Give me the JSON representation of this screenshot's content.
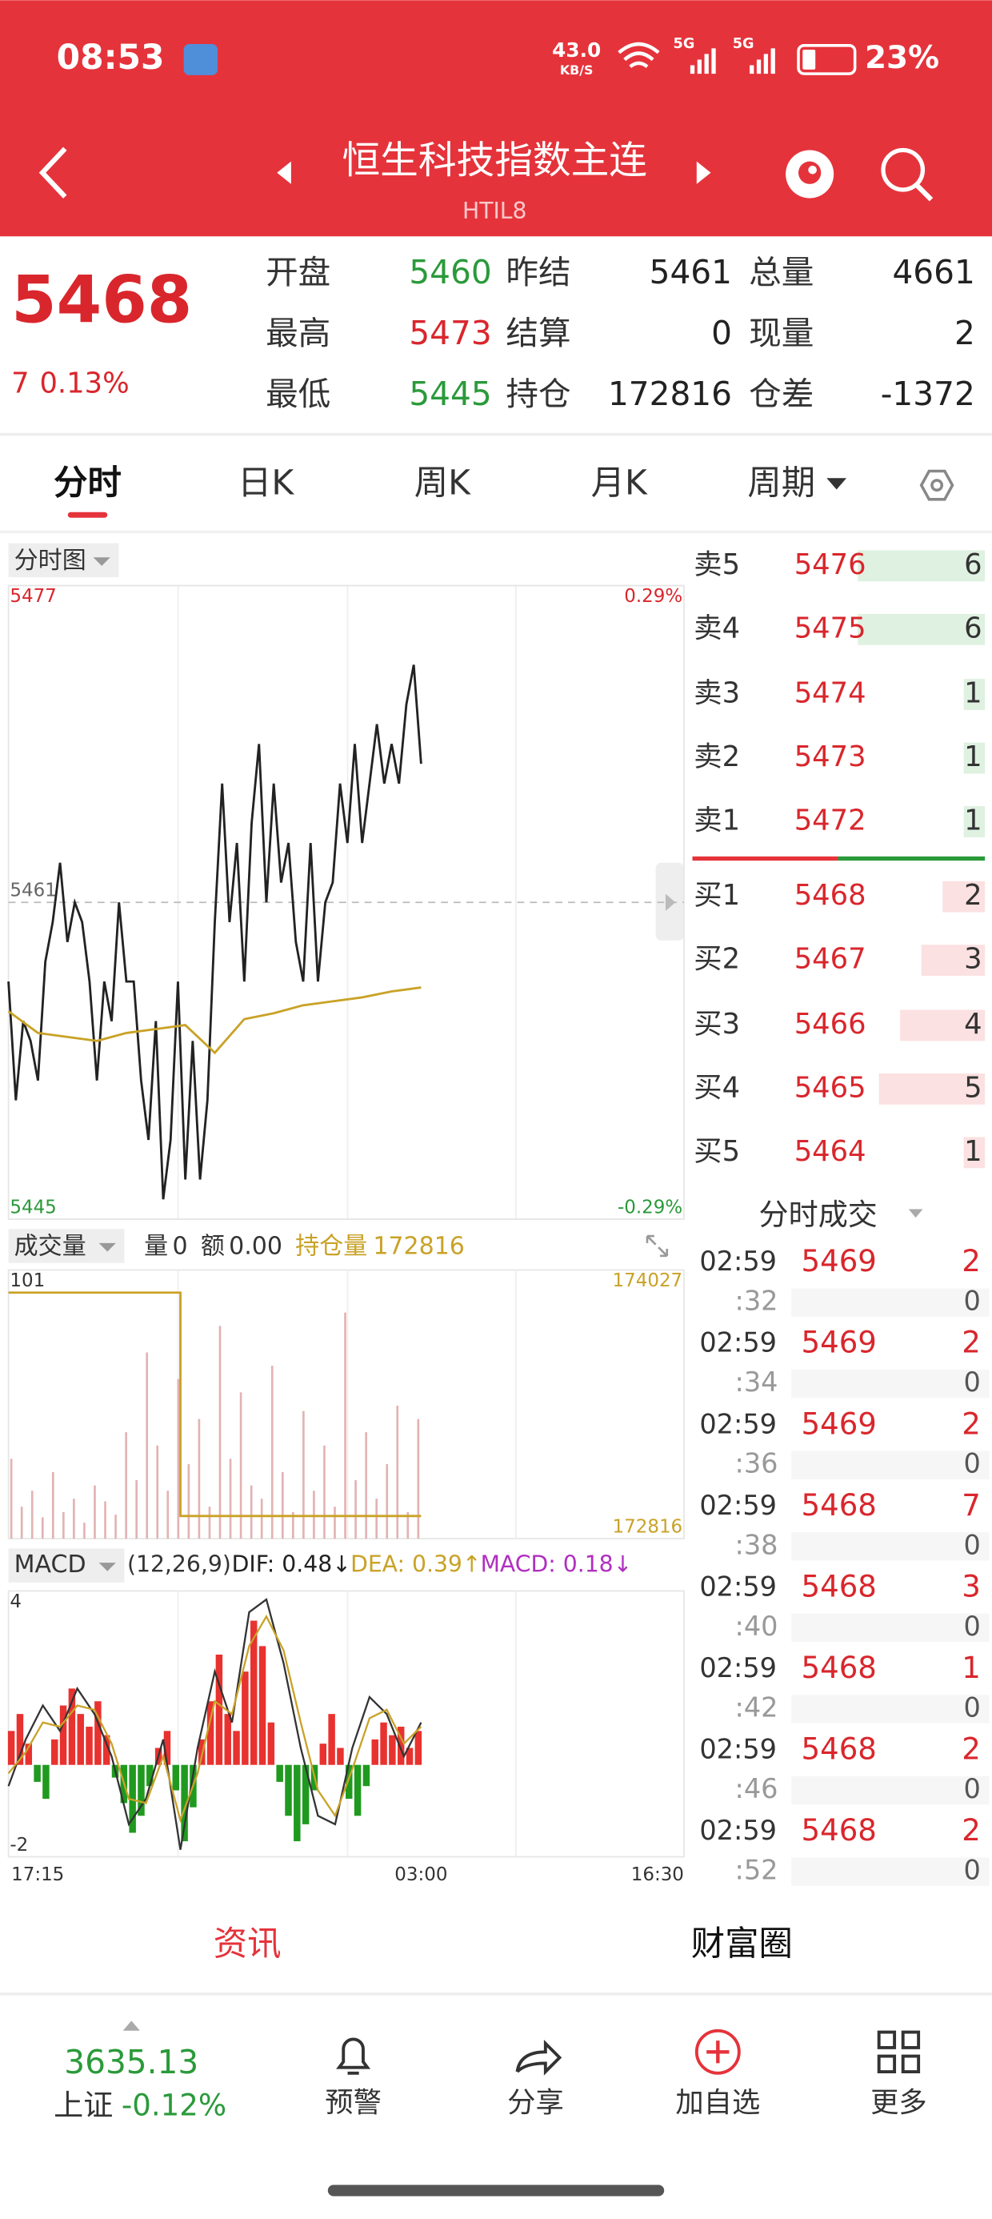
{
  "status_bar": {
    "time": "08:53",
    "speed": "43.0",
    "speed_unit": "KB/S",
    "network": [
      "5G",
      "5G"
    ],
    "battery": "23%"
  },
  "header": {
    "title": "恒生科技指数主连",
    "code": "HTIL8"
  },
  "quote": {
    "price": "5468",
    "change": "7",
    "change_pct": "0.13%",
    "fields": [
      {
        "label": "开盘",
        "value": "5460",
        "color": "#2a9a3a"
      },
      {
        "label": "昨结",
        "value": "5461",
        "color": "#222222"
      },
      {
        "label": "总量",
        "value": "4661",
        "color": "#222222"
      },
      {
        "label": "最高",
        "value": "5473",
        "color": "#d9262c"
      },
      {
        "label": "结算",
        "value": "0",
        "color": "#222222"
      },
      {
        "label": "现量",
        "value": "2",
        "color": "#222222"
      },
      {
        "label": "最低",
        "value": "5445",
        "color": "#2a9a3a"
      },
      {
        "label": "持仓",
        "value": "172816",
        "color": "#222222"
      },
      {
        "label": "仓差",
        "value": "-1372",
        "color": "#222222"
      }
    ]
  },
  "tabs": [
    "分时",
    "日K",
    "周K",
    "月K",
    "周期"
  ],
  "price_chart": {
    "type": "line",
    "label": "分时图",
    "ylim": [
      5445,
      5477
    ],
    "yticks": [
      5445,
      5461,
      5477
    ],
    "pct_lim": [
      -0.29,
      0.29
    ],
    "pct_ticks": [
      {
        "value": -0.29,
        "label": "-0.29%"
      },
      {
        "value": 0.29,
        "label": "0.29%"
      }
    ],
    "series": [
      {
        "name": "price",
        "color": "#222222",
        "values": [
          5457,
          5451,
          5455,
          5454,
          5452,
          5458,
          5460,
          5463,
          5459,
          5461,
          5460,
          5457,
          5452,
          5457,
          5455,
          5461,
          5457,
          5457,
          5452,
          5449,
          5455,
          5446,
          5449,
          5457,
          5447,
          5454,
          5447,
          5451,
          5460,
          5467,
          5460,
          5464,
          5457,
          5465,
          5469,
          5461,
          5467,
          5462,
          5464,
          5459,
          5457,
          5464,
          5457,
          5461,
          5462,
          5467,
          5464,
          5469,
          5464,
          5467,
          5470,
          5467,
          5469,
          5467,
          5471,
          5473,
          5468
        ]
      },
      {
        "name": "average",
        "color": "#c9a227",
        "values": [
          5455.5,
          5454.4,
          5454.2,
          5454.0,
          5454.4,
          5454.6,
          5454.8,
          5453.4,
          5455.1,
          5455.4,
          5455.8,
          5456.0,
          5456.2,
          5456.5,
          5456.7
        ]
      }
    ],
    "xlabels": [
      "17:15",
      "03:00",
      "16:30"
    ]
  },
  "volume_chart": {
    "type": "bar",
    "label": "成交量",
    "stats": [
      {
        "label": "量",
        "value": "0"
      },
      {
        "label": "额",
        "value": "0.00"
      }
    ],
    "oi_stat": {
      "label": "持仓量",
      "value": "172816"
    },
    "ylim": [
      0,
      101
    ],
    "yticks": [
      101
    ],
    "values": [
      30,
      12,
      18,
      8,
      25,
      10,
      15,
      6,
      20,
      14,
      9,
      40,
      22,
      70,
      35,
      18,
      60,
      28,
      45,
      12,
      80,
      30,
      55,
      20,
      15,
      65,
      25,
      10,
      48,
      18,
      35,
      12,
      85,
      22,
      40,
      15,
      28,
      50,
      10,
      45
    ],
    "color": "#e3b2b2",
    "y2lim": [
      172816,
      174027
    ],
    "y2ticks": [
      174027,
      172816
    ],
    "oi": {
      "name": "持仓量",
      "color": "#c9a227",
      "axis": "y2",
      "values": [
        174027,
        174027,
        174027,
        174027,
        174027,
        174027,
        174027,
        174027,
        174027,
        174027,
        172816,
        172816,
        172816,
        172816,
        172816,
        172816,
        172816,
        172816,
        172816,
        172816,
        172816,
        172816,
        172816,
        172816,
        172816
      ]
    }
  },
  "macd_chart": {
    "type": "bar",
    "label": "MACD",
    "params": "(12,26,9)",
    "legend": [
      {
        "text": "DIF: 0.48↓",
        "color": "#222222"
      },
      {
        "text": "DEA: 0.39↑",
        "color": "#c9a227"
      },
      {
        "text": "MACD: 0.18↓",
        "color": "#b030c0"
      }
    ],
    "ylim": [
      -2,
      4
    ],
    "yticks": [
      -2,
      4
    ],
    "histogram": [
      0.8,
      1.2,
      0.5,
      -0.4,
      -0.8,
      0.6,
      1.4,
      1.8,
      1.2,
      0.9,
      1.5,
      0.7,
      -0.3,
      -0.9,
      -1.6,
      -1.2,
      -0.5,
      0.4,
      0.8,
      -0.6,
      -1.8,
      -1.0,
      0.6,
      1.5,
      2.6,
      1.2,
      0.8,
      2.2,
      3.4,
      2.8,
      1.0,
      -0.4,
      -1.2,
      -1.8,
      -1.4,
      -0.6,
      0.5,
      1.2,
      0.4,
      -0.8,
      -1.2,
      -0.5,
      0.6,
      1.0,
      0.7,
      0.9,
      0.4,
      0.8
    ],
    "up_color": "#e8322f",
    "down_color": "#1f9a1f",
    "series": [
      {
        "name": "DIF",
        "color": "#333333",
        "values": [
          -0.5,
          0.6,
          1.4,
          0.8,
          1.8,
          1.2,
          0.2,
          -1.4,
          -0.8,
          0.6,
          -2.0,
          0.4,
          2.2,
          1.0,
          3.6,
          3.9,
          2.4,
          0.4,
          -1.2,
          -1.4,
          0.4,
          1.6,
          1.2,
          0.2,
          1.0
        ]
      },
      {
        "name": "DEA",
        "color": "#c9a227",
        "values": [
          -0.2,
          0.3,
          1.0,
          0.9,
          1.4,
          1.3,
          0.5,
          -0.8,
          -0.9,
          0.2,
          -1.3,
          -0.2,
          1.5,
          1.2,
          2.8,
          3.5,
          2.7,
          1.0,
          -0.6,
          -1.2,
          -0.1,
          1.1,
          1.3,
          0.5,
          0.9
        ]
      }
    ]
  },
  "order_book": {
    "asks": [
      {
        "label": "卖5",
        "price": "5476",
        "volume": 6
      },
      {
        "label": "卖4",
        "price": "5475",
        "volume": 6
      },
      {
        "label": "卖3",
        "price": "5474",
        "volume": 1
      },
      {
        "label": "卖2",
        "price": "5473",
        "volume": 1
      },
      {
        "label": "卖1",
        "price": "5472",
        "volume": 1
      }
    ],
    "bids": [
      {
        "label": "买1",
        "price": "5468",
        "volume": 2
      },
      {
        "label": "买2",
        "price": "5467",
        "volume": 3
      },
      {
        "label": "买3",
        "price": "5466",
        "volume": 4
      },
      {
        "label": "买4",
        "price": "5465",
        "volume": 5
      },
      {
        "label": "买5",
        "price": "5464",
        "volume": 1
      }
    ]
  },
  "trades": {
    "title": "分时成交",
    "rows": [
      {
        "time": "02:59",
        "price": "5469",
        "volume": "2",
        "sub_time": ":32",
        "sub_volume": "0"
      },
      {
        "time": "02:59",
        "price": "5469",
        "volume": "2",
        "sub_time": ":34",
        "sub_volume": "0"
      },
      {
        "time": "02:59",
        "price": "5469",
        "volume": "2",
        "sub_time": ":36",
        "sub_volume": "0"
      },
      {
        "time": "02:59",
        "price": "5468",
        "volume": "7",
        "sub_time": ":38",
        "sub_volume": "0"
      },
      {
        "time": "02:59",
        "price": "5468",
        "volume": "3",
        "sub_time": ":40",
        "sub_volume": "0"
      },
      {
        "time": "02:59",
        "price": "5468",
        "volume": "1",
        "sub_time": ":42",
        "sub_volume": "0"
      },
      {
        "time": "02:59",
        "price": "5468",
        "volume": "2",
        "sub_time": ":46",
        "sub_volume": "0"
      },
      {
        "time": "02:59",
        "price": "5468",
        "volume": "2",
        "sub_time": ":52",
        "sub_volume": "0"
      }
    ]
  },
  "bottom_tabs": [
    "资讯",
    "财富圈"
  ],
  "index_ticker": {
    "value": "3635.13",
    "name": "上证",
    "change": "-0.12%"
  },
  "nav": [
    "预警",
    "分享",
    "加自选",
    "更多"
  ]
}
